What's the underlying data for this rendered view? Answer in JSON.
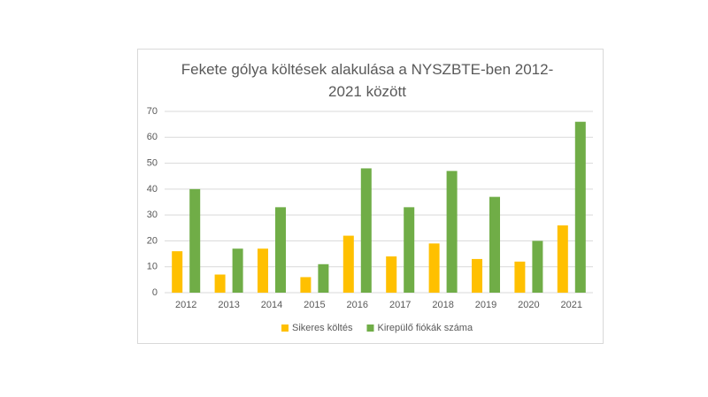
{
  "chart_data": {
    "type": "bar",
    "title": "Fekete gólya költések alakulása a NYSZBTE-ben 2012-2021 között",
    "categories": [
      "2012",
      "2013",
      "2014",
      "2015",
      "2016",
      "2017",
      "2018",
      "2019",
      "2020",
      "2021"
    ],
    "series": [
      {
        "name": "Sikeres költés",
        "color": "#ffc000",
        "values": [
          16,
          7,
          17,
          6,
          22,
          14,
          19,
          13,
          12,
          26
        ]
      },
      {
        "name": "Kirepülő fiókák száma",
        "color": "#70ad47",
        "values": [
          40,
          17,
          33,
          11,
          48,
          33,
          47,
          37,
          20,
          66
        ]
      }
    ],
    "ylim": [
      0,
      70
    ],
    "yticks": [
      0,
      10,
      20,
      30,
      40,
      50,
      60,
      70
    ],
    "grid": true,
    "legend": "bottom"
  }
}
